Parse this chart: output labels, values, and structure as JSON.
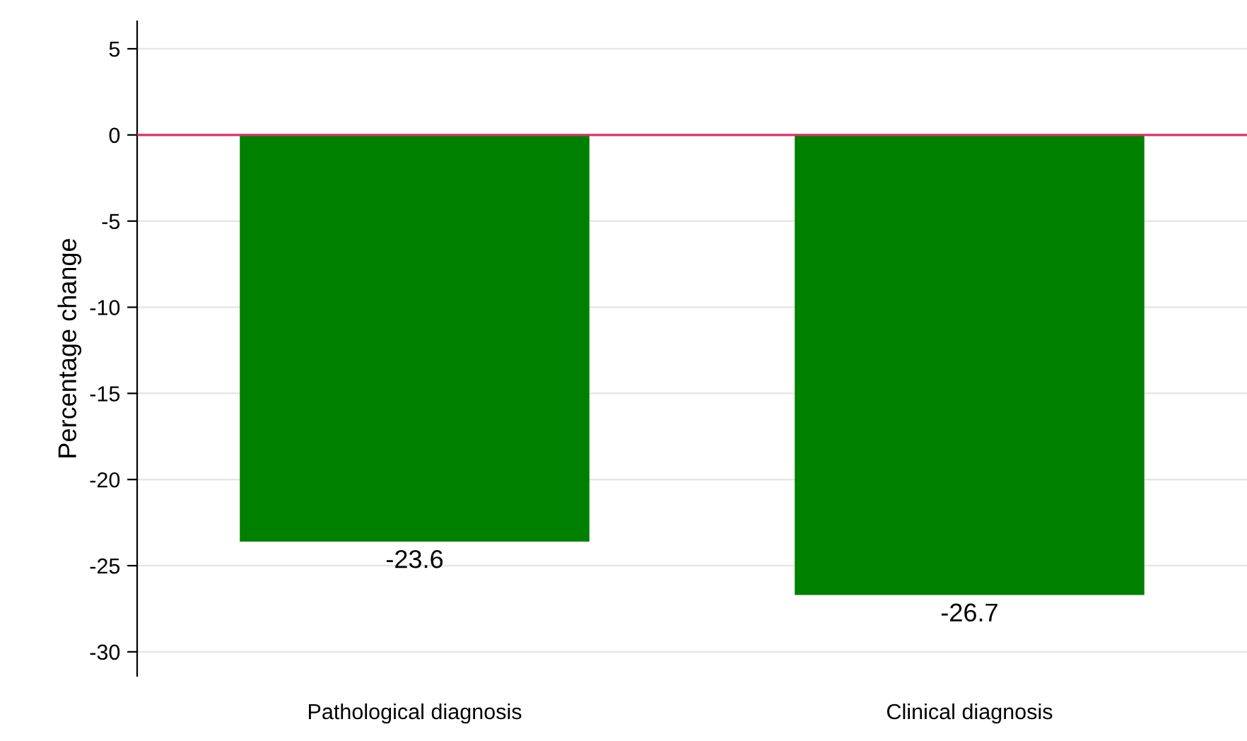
{
  "chart_data": {
    "type": "bar",
    "ylabel": "Percentage change",
    "categories": [
      "Pathological diagnosis",
      "Clinical diagnosis"
    ],
    "values": [
      -23.6,
      -26.7
    ],
    "color": "#008000",
    "ylim": [
      -31.4,
      6.6
    ],
    "yticks": [
      -30,
      -25,
      -20,
      -15,
      -10,
      -5,
      0,
      5
    ],
    "grid": "y",
    "data_labels": true,
    "ref_lines": [
      {
        "axis": "y",
        "value": 0,
        "color": "#d6336c"
      }
    ]
  }
}
